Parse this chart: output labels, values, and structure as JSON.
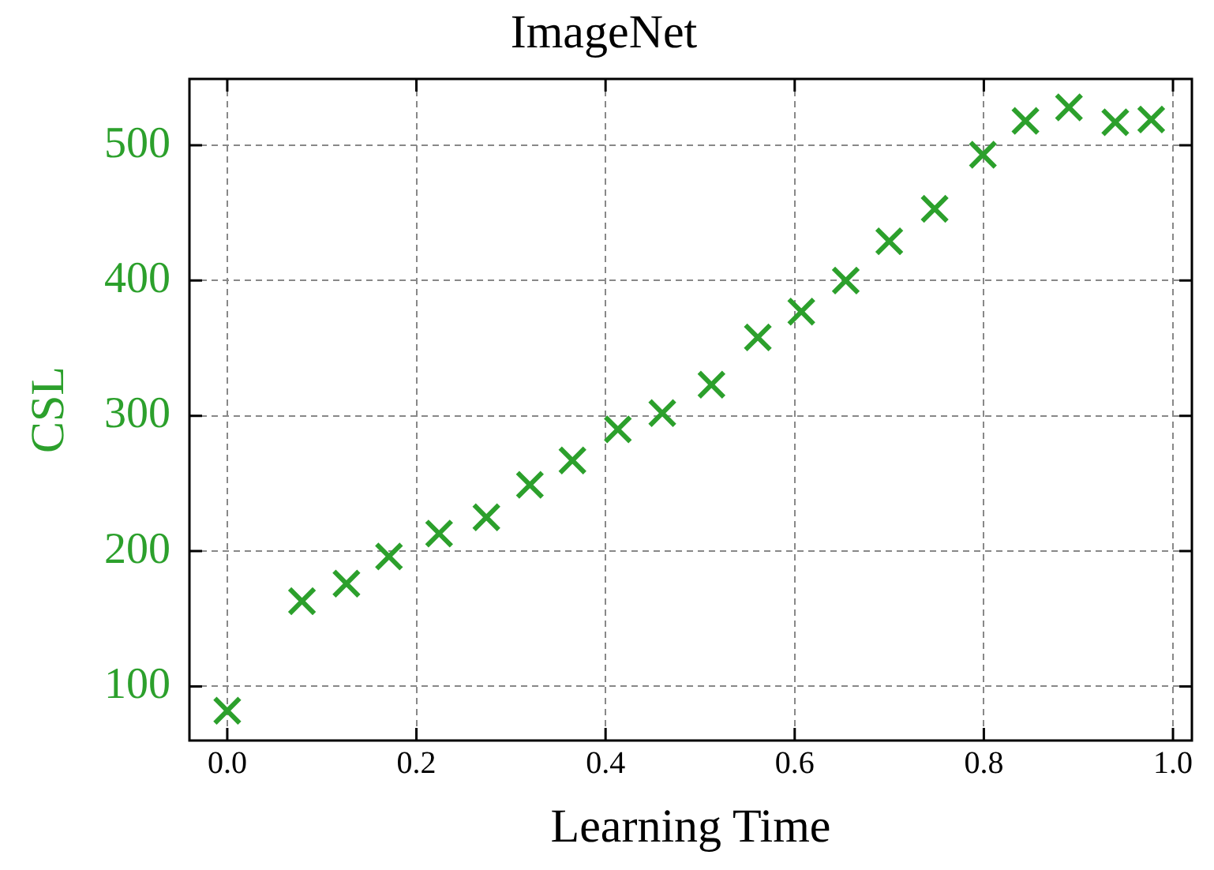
{
  "chart_data": {
    "type": "scatter",
    "title": "ImageNet",
    "xlabel": "Learning Time",
    "ylabel": "CSL",
    "x": [
      0.0,
      0.079,
      0.126,
      0.171,
      0.224,
      0.274,
      0.32,
      0.365,
      0.413,
      0.46,
      0.512,
      0.561,
      0.607,
      0.654,
      0.7,
      0.748,
      0.799,
      0.844,
      0.89,
      0.939,
      0.977
    ],
    "series": [
      {
        "color": "#2ca02c",
        "values": [
          82,
          163,
          176,
          196,
          213,
          225,
          249,
          267,
          290,
          302,
          323,
          358,
          377,
          400,
          429,
          453,
          493,
          518,
          528,
          517,
          519
        ]
      }
    ],
    "marker": "cross",
    "grid": true,
    "legend": false,
    "xlim": [
      -0.04,
      1.02
    ],
    "xticks": [
      {
        "value": 0,
        "label": "0.0"
      },
      0.2,
      0.4,
      0.6,
      0.8,
      {
        "value": 1,
        "label": "1.0"
      }
    ],
    "ylim": [
      60,
      549
    ],
    "yticks": [
      100,
      200,
      300,
      400,
      500
    ]
  }
}
